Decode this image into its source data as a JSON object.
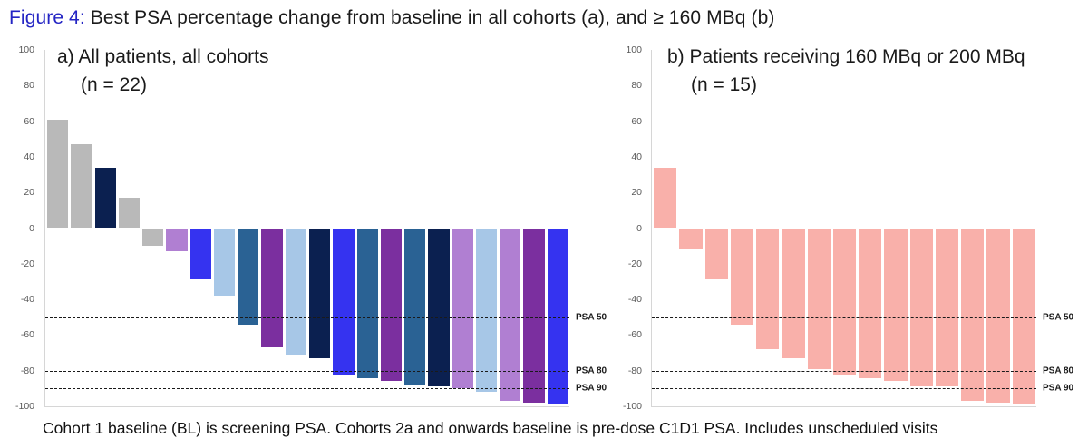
{
  "figure": {
    "label": "Figure 4:",
    "title": " Best PSA percentage change from baseline in all cohorts (a), and ≥ 160 MBq (b)",
    "footnote": "Cohort 1 baseline (BL) is screening PSA. Cohorts 2a and onwards baseline is pre-dose C1D1 PSA. Includes unscheduled visits",
    "accent_color": "#2425c4"
  },
  "palette": {
    "gray": "#b9b9b9",
    "navy": "#0b2050",
    "orchid": "#b07fd2",
    "blue": "#3533f0",
    "light_blue": "#a7c7e7",
    "steel_blue": "#2a6294",
    "purple": "#7b2f9f",
    "pink": "#f9b0aa",
    "axis_line": "#d6d6d6",
    "tick_text": "#595959",
    "ref_line": "#1a1a1a"
  },
  "axis": {
    "ymax": 100,
    "ymin": -100,
    "ticks": [
      100,
      80,
      60,
      40,
      20,
      0,
      -20,
      -40,
      -60,
      -80,
      -100
    ],
    "grid": false
  },
  "reference_lines": [
    {
      "value": -50,
      "label": "PSA 50"
    },
    {
      "value": -80,
      "label": "PSA 80"
    },
    {
      "value": -90,
      "label": "PSA 90"
    }
  ],
  "chart_data": [
    {
      "type": "bar",
      "panel": "a",
      "title_line1": "a) All patients, all cohorts",
      "title_line2": "(n = 22)",
      "n": 22,
      "ylim": [
        -100,
        100
      ],
      "values": [
        61,
        47,
        34,
        17,
        -10,
        -13,
        -29,
        -38,
        -54,
        -67,
        -71,
        -73,
        -82,
        -84,
        -86,
        -88,
        -89,
        -90,
        -92,
        -97,
        -98,
        -99
      ],
      "bar_colors": [
        "gray",
        "gray",
        "navy",
        "gray",
        "gray",
        "orchid",
        "blue",
        "light_blue",
        "steel_blue",
        "purple",
        "light_blue",
        "navy",
        "blue",
        "steel_blue",
        "purple",
        "steel_blue",
        "navy",
        "orchid",
        "light_blue",
        "orchid",
        "purple",
        "blue"
      ]
    },
    {
      "type": "bar",
      "panel": "b",
      "title_line1": "b) Patients receiving 160 MBq or 200 MBq",
      "title_line2": "(n = 15)",
      "n": 15,
      "ylim": [
        -100,
        100
      ],
      "values": [
        34,
        -12,
        -29,
        -54,
        -68,
        -73,
        -79,
        -82,
        -84,
        -86,
        -89,
        -89,
        -97,
        -98,
        -99
      ],
      "bar_colors": [
        "pink",
        "pink",
        "pink",
        "pink",
        "pink",
        "pink",
        "pink",
        "pink",
        "pink",
        "pink",
        "pink",
        "pink",
        "pink",
        "pink",
        "pink"
      ]
    }
  ]
}
